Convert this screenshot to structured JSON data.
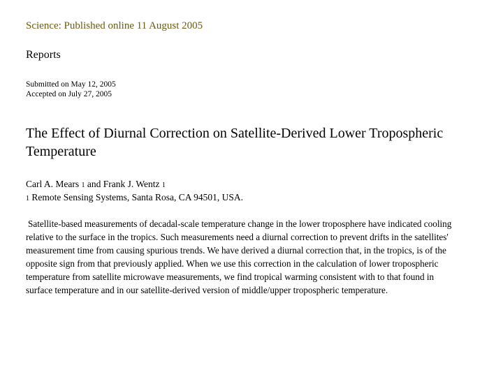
{
  "header": {
    "journal_line": "Science:  Published online 11 August 2005",
    "section": "Reports"
  },
  "dates": {
    "submitted": "Submitted on May 12, 2005",
    "accepted": "Accepted on July 27, 2005"
  },
  "article": {
    "title": "The Effect of Diurnal Correction on Satellite-Derived Lower Tropospheric Temperature",
    "authors": [
      {
        "name": "Carl A. Mears",
        "affil_mark": "1"
      },
      {
        "name": "Frank J. Wentz",
        "affil_mark": "1"
      }
    ],
    "author_joiner": "and",
    "affiliation": {
      "mark": "1",
      "text": "Remote Sensing Systems, Santa Rosa, CA 94501, USA."
    },
    "abstract": "Satellite-based measurements of decadal-scale temperature change in the lower troposphere have indicated cooling relative to the surface in the tropics. Such measurements need a diurnal correction to prevent drifts in the satellites' measurement time from causing spurious trends. We have derived a diurnal correction that, in the tropics, is of the opposite sign from that previously applied. When we use this correction in the calculation of lower tropospheric temperature from satellite microwave measurements, we find tropical warming consistent with to that found in surface temperature and in our satellite-derived version of middle/upper tropospheric temperature."
  },
  "colors": {
    "journal_line": "#6b5a10",
    "text": "#000000",
    "background": "#ffffff"
  }
}
